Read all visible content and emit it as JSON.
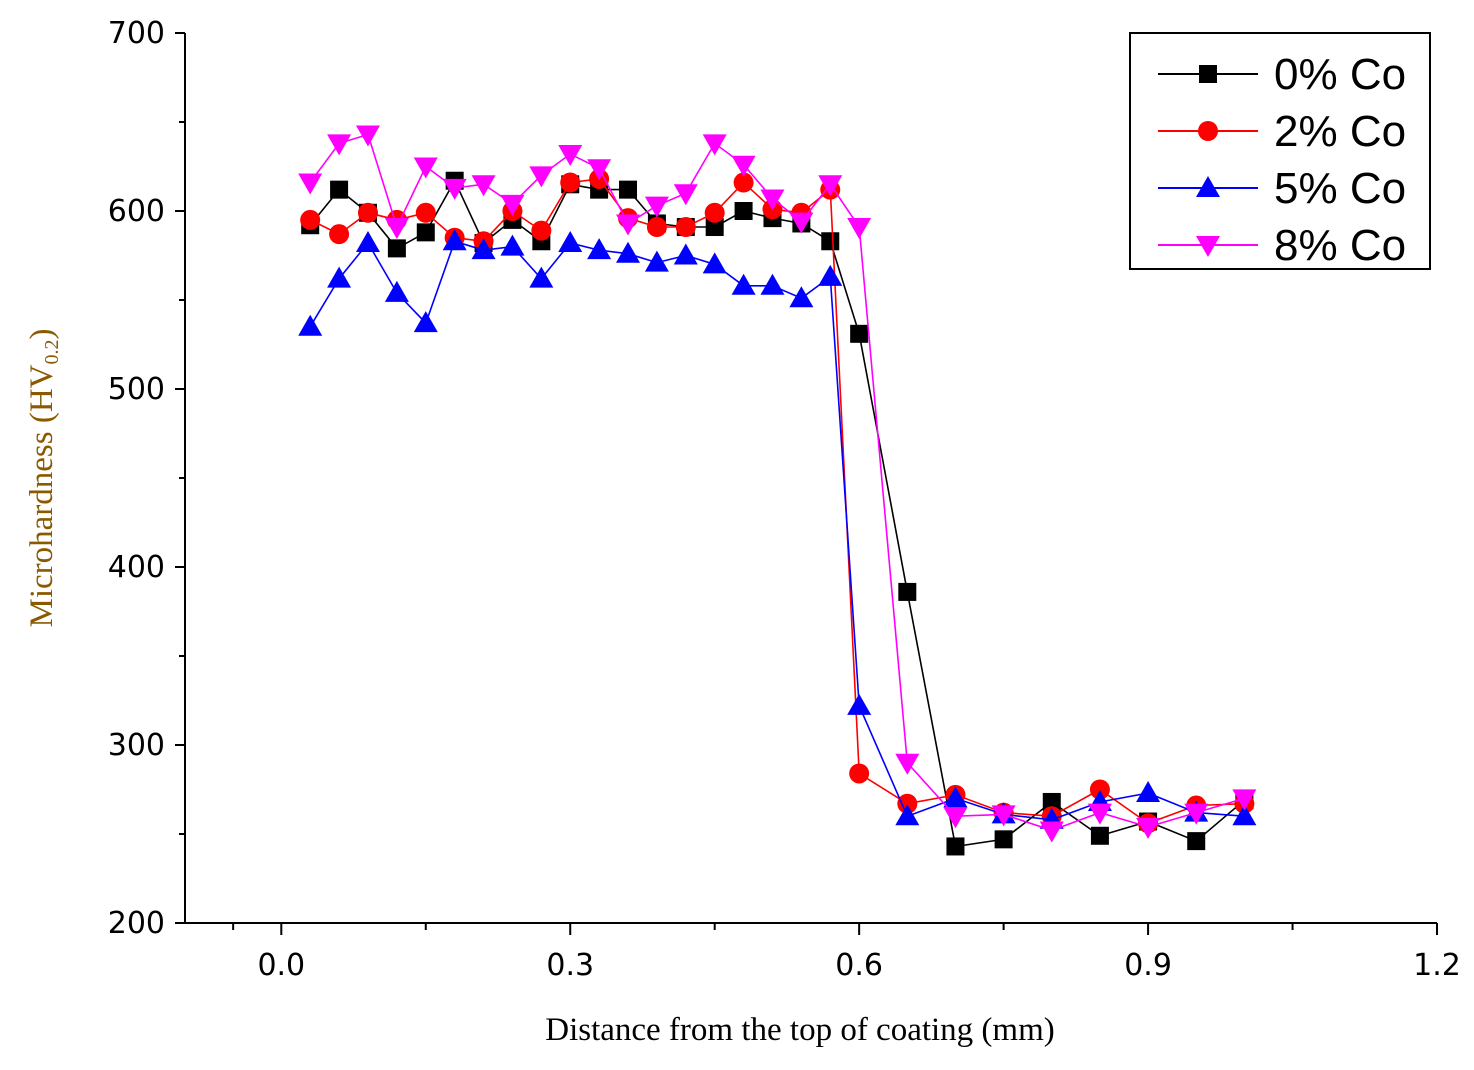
{
  "chart_data": {
    "type": "line",
    "title": "",
    "xlabel": "Distance from the top of coating (mm)",
    "ylabel_main": "Microhardness (HV",
    "ylabel_sub": "0.2",
    "ylabel_close": ")",
    "ylabel_color": "#8B5A00",
    "xlim": [
      -0.1,
      1.2
    ],
    "ylim": [
      200,
      700
    ],
    "x_ticks": [
      0.0,
      0.3,
      0.6,
      0.9,
      1.2
    ],
    "x_tick_labels": [
      "0.0",
      "0.3",
      "0.6",
      "0.9",
      "1.2"
    ],
    "x_minor_ticks": [
      -0.05,
      0.15,
      0.45,
      0.75,
      1.05
    ],
    "y_ticks": [
      200,
      300,
      400,
      500,
      600,
      700
    ],
    "y_tick_labels": [
      "200",
      "300",
      "400",
      "500",
      "600",
      "700"
    ],
    "y_minor_ticks": [
      250,
      350,
      450,
      550,
      650
    ],
    "grid": false,
    "legend_position": "top-right",
    "series": [
      {
        "name": "0% Co",
        "color": "#000000",
        "marker": "square",
        "x": [
          0.03,
          0.06,
          0.09,
          0.12,
          0.15,
          0.18,
          0.21,
          0.24,
          0.27,
          0.3,
          0.33,
          0.36,
          0.39,
          0.42,
          0.45,
          0.48,
          0.51,
          0.54,
          0.57,
          0.6,
          0.65,
          0.7,
          0.75,
          0.8,
          0.85,
          0.9,
          0.95,
          1.0
        ],
        "values": [
          592,
          612,
          599,
          579,
          588,
          617,
          582,
          595,
          583,
          615,
          612,
          612,
          593,
          591,
          591,
          600,
          596,
          593,
          583,
          531,
          386,
          243,
          247,
          268,
          249,
          257,
          246,
          269
        ]
      },
      {
        "name": "2% Co",
        "color": "#ff0000",
        "marker": "circle",
        "x": [
          0.03,
          0.06,
          0.09,
          0.12,
          0.15,
          0.18,
          0.21,
          0.24,
          0.27,
          0.3,
          0.33,
          0.36,
          0.39,
          0.42,
          0.45,
          0.48,
          0.51,
          0.54,
          0.57,
          0.6,
          0.65,
          0.7,
          0.75,
          0.8,
          0.85,
          0.9,
          0.95,
          1.0
        ],
        "values": [
          595,
          587,
          599,
          595,
          599,
          585,
          583,
          600,
          589,
          616,
          618,
          596,
          591,
          591,
          599,
          616,
          601,
          599,
          612,
          284,
          267,
          272,
          262,
          260,
          275,
          256,
          266,
          267
        ]
      },
      {
        "name": "5% Co",
        "color": "#0000ff",
        "marker": "triangle-up",
        "x": [
          0.03,
          0.06,
          0.09,
          0.12,
          0.15,
          0.18,
          0.21,
          0.24,
          0.27,
          0.3,
          0.33,
          0.36,
          0.39,
          0.42,
          0.45,
          0.48,
          0.51,
          0.54,
          0.57,
          0.6,
          0.65,
          0.7,
          0.75,
          0.8,
          0.85,
          0.9,
          0.95,
          1.0
        ],
        "values": [
          535,
          562,
          582,
          554,
          537,
          583,
          578,
          580,
          562,
          582,
          578,
          576,
          571,
          575,
          570,
          558,
          558,
          551,
          563,
          322,
          260,
          270,
          261,
          258,
          268,
          273,
          262,
          260
        ]
      },
      {
        "name": "8% Co",
        "color": "#ff00ff",
        "marker": "triangle-down",
        "x": [
          0.03,
          0.06,
          0.09,
          0.12,
          0.15,
          0.18,
          0.21,
          0.24,
          0.27,
          0.3,
          0.33,
          0.36,
          0.39,
          0.42,
          0.45,
          0.48,
          0.51,
          0.54,
          0.57,
          0.6,
          0.65,
          0.7,
          0.75,
          0.8,
          0.85,
          0.9,
          0.95,
          1.0
        ],
        "values": [
          616,
          638,
          643,
          591,
          625,
          613,
          615,
          604,
          620,
          632,
          624,
          593,
          603,
          610,
          638,
          626,
          607,
          594,
          615,
          591,
          290,
          260,
          261,
          252,
          262,
          254,
          262,
          270
        ]
      }
    ]
  }
}
